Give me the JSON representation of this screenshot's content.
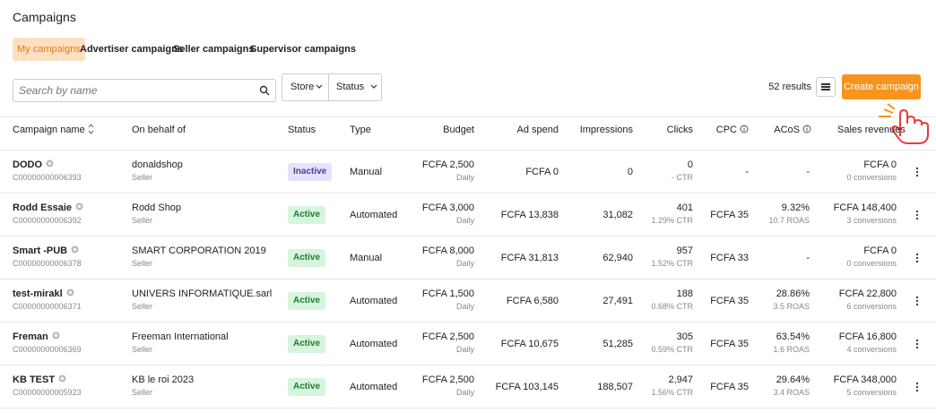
{
  "header": {
    "title": "Campaigns"
  },
  "tabs": [
    "My campaigns",
    "Advertiser campaigns",
    "Seller campaigns",
    "Supervisor campaigns"
  ],
  "toolbar": {
    "search_placeholder": "Search by name",
    "filters": [
      "Store",
      "Status"
    ],
    "results": "52 results",
    "create_button": "Create campaign"
  },
  "table": {
    "columns": [
      "Campaign name",
      "On behalf of",
      "Status",
      "Type",
      "Budget",
      "Ad spend",
      "Impressions",
      "Clicks",
      "CPC",
      "ACoS",
      "Sales revenues"
    ],
    "rows": [
      {
        "name": "DODO",
        "id": "C00000000006393",
        "behalf": "donaldshop",
        "role": "Seller",
        "status": "Inactive",
        "type": "Manual",
        "budget": "FCFA 2,500",
        "period": "Daily",
        "ad_spend": "FCFA 0",
        "impressions": "0",
        "clicks": "0",
        "ctr": "- CTR",
        "cpc": "-",
        "acos": "-",
        "sales": "FCFA 0",
        "conversions": "0 conversions"
      },
      {
        "name": "Rodd Essaie",
        "id": "C00000000006392",
        "behalf": "Rodd Shop",
        "role": "Seller",
        "status": "Active",
        "type": "Automated",
        "budget": "FCFA 3,000",
        "period": "Daily",
        "ad_spend": "FCFA 13,838",
        "impressions": "31,082",
        "clicks": "401",
        "ctr": "1.29% CTR",
        "cpc": "FCFA 35",
        "acos": "9.32%",
        "roas": "10.7 ROAS",
        "sales": "FCFA 148,400",
        "conversions": "3 conversions"
      },
      {
        "name": "Smart -PUB",
        "id": "C00000000006378",
        "behalf": "SMART CORPORATION 2019",
        "role": "Seller",
        "status": "Active",
        "type": "Manual",
        "budget": "FCFA 8,000",
        "period": "Daily",
        "ad_spend": "FCFA 31,813",
        "impressions": "62,940",
        "clicks": "957",
        "ctr": "1.52% CTR",
        "cpc": "FCFA 33",
        "acos": "-",
        "sales": "FCFA 0",
        "conversions": "0 conversions"
      },
      {
        "name": "test-mirakl",
        "id": "C00000000006371",
        "behalf": "UNIVERS INFORMATIQUE.sarl",
        "role": "Seller",
        "status": "Active",
        "type": "Automated",
        "budget": "FCFA 1,500",
        "period": "Daily",
        "ad_spend": "FCFA 6,580",
        "impressions": "27,491",
        "clicks": "188",
        "ctr": "0.68% CTR",
        "cpc": "FCFA 35",
        "acos": "28.86%",
        "roas": "3.5 ROAS",
        "sales": "FCFA 22,800",
        "conversions": "6 conversions"
      },
      {
        "name": "Freman",
        "id": "C00000000006369",
        "behalf": "Freeman International",
        "role": "Seller",
        "status": "Active",
        "type": "Automated",
        "budget": "FCFA 2,500",
        "period": "Daily",
        "ad_spend": "FCFA 10,675",
        "impressions": "51,285",
        "clicks": "305",
        "ctr": "0.59% CTR",
        "cpc": "FCFA 35",
        "acos": "63.54%",
        "roas": "1.6 ROAS",
        "sales": "FCFA 16,800",
        "conversions": "4 conversions"
      },
      {
        "name": "KB TEST",
        "id": "C00000000005923",
        "behalf": "KB le roi 2023",
        "role": "Seller",
        "status": "Active",
        "type": "Automated",
        "budget": "FCFA 2,500",
        "period": "Daily",
        "ad_spend": "FCFA 103,145",
        "impressions": "188,507",
        "clicks": "2,947",
        "ctr": "1.56% CTR",
        "cpc": "FCFA 35",
        "acos": "29.64%",
        "roas": "3.4 ROAS",
        "sales": "FCFA 348,000",
        "conversions": "5 conversions"
      }
    ]
  }
}
